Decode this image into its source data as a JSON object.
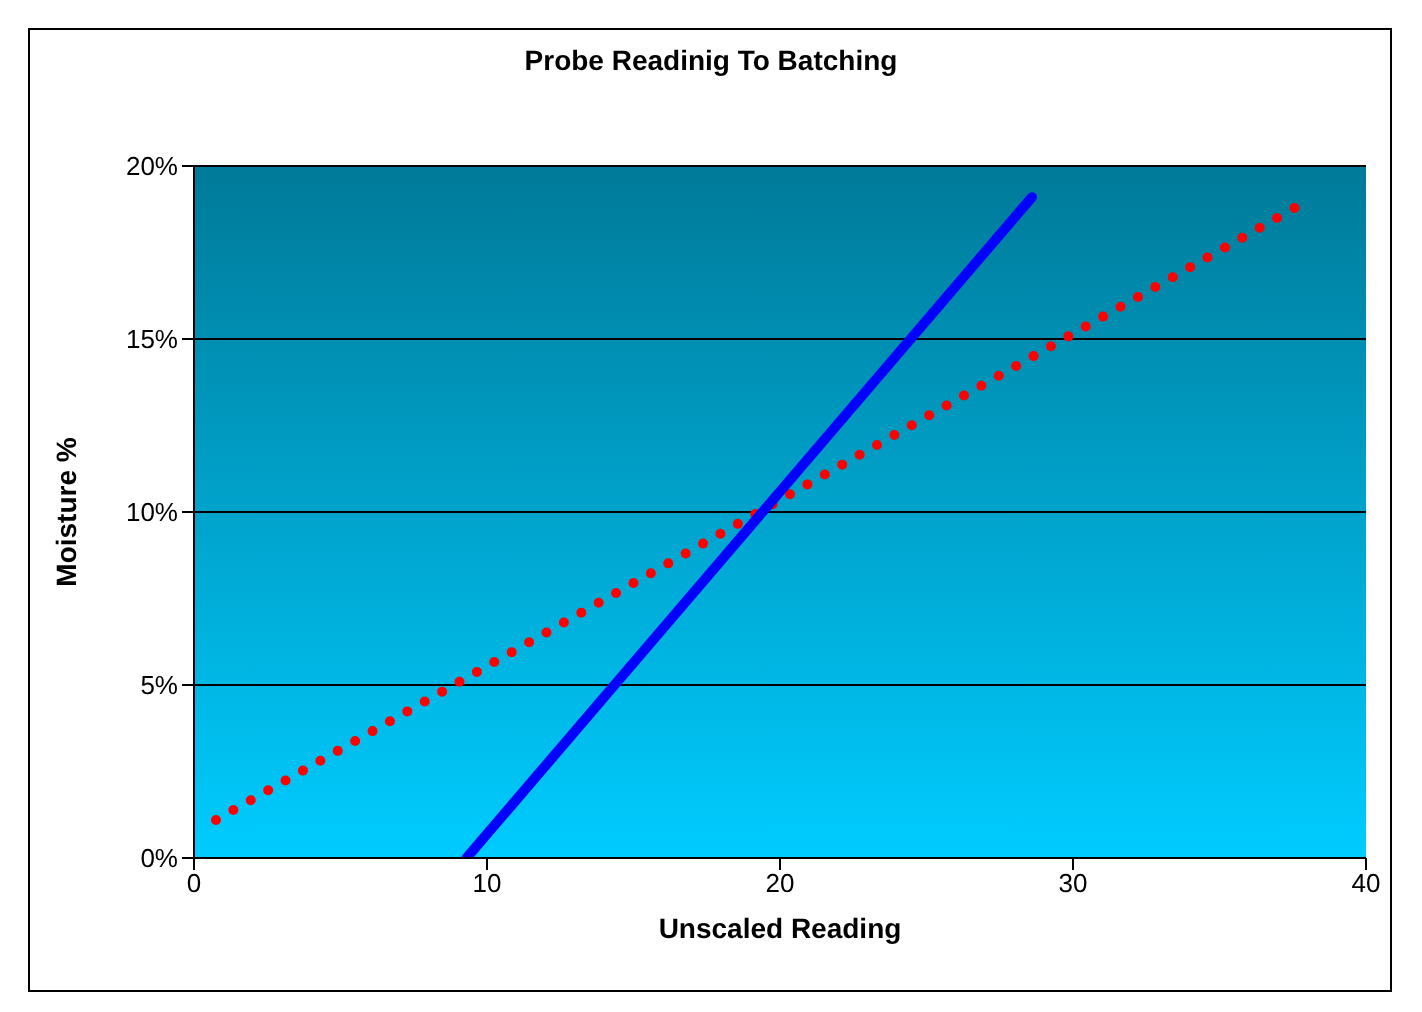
{
  "chart_data": {
    "type": "line",
    "title": "Probe Readinig To Batching",
    "xlabel": "Unscaled Reading",
    "ylabel": "Moisture %",
    "xlim": [
      0,
      40
    ],
    "xticks": [
      0,
      10,
      20,
      30,
      40
    ],
    "ylim": [
      0,
      20
    ],
    "yticks": [
      {
        "value": 0,
        "label": "0%"
      },
      {
        "value": 5,
        "label": "5%"
      },
      {
        "value": 10,
        "label": "10%"
      },
      {
        "value": 15,
        "label": "15%"
      },
      {
        "value": 20,
        "label": "20%"
      }
    ],
    "grid": "y",
    "marker": "none",
    "series": [
      {
        "color": "#ff0000",
        "line_style": "dotted",
        "x": [
          0.75,
          37.8
        ],
        "values": [
          1.1,
          18.9
        ]
      },
      {
        "color": "#0000ff",
        "line_style": "solid",
        "x": [
          9.3,
          28.6
        ],
        "values": [
          0,
          19.1
        ]
      }
    ]
  }
}
